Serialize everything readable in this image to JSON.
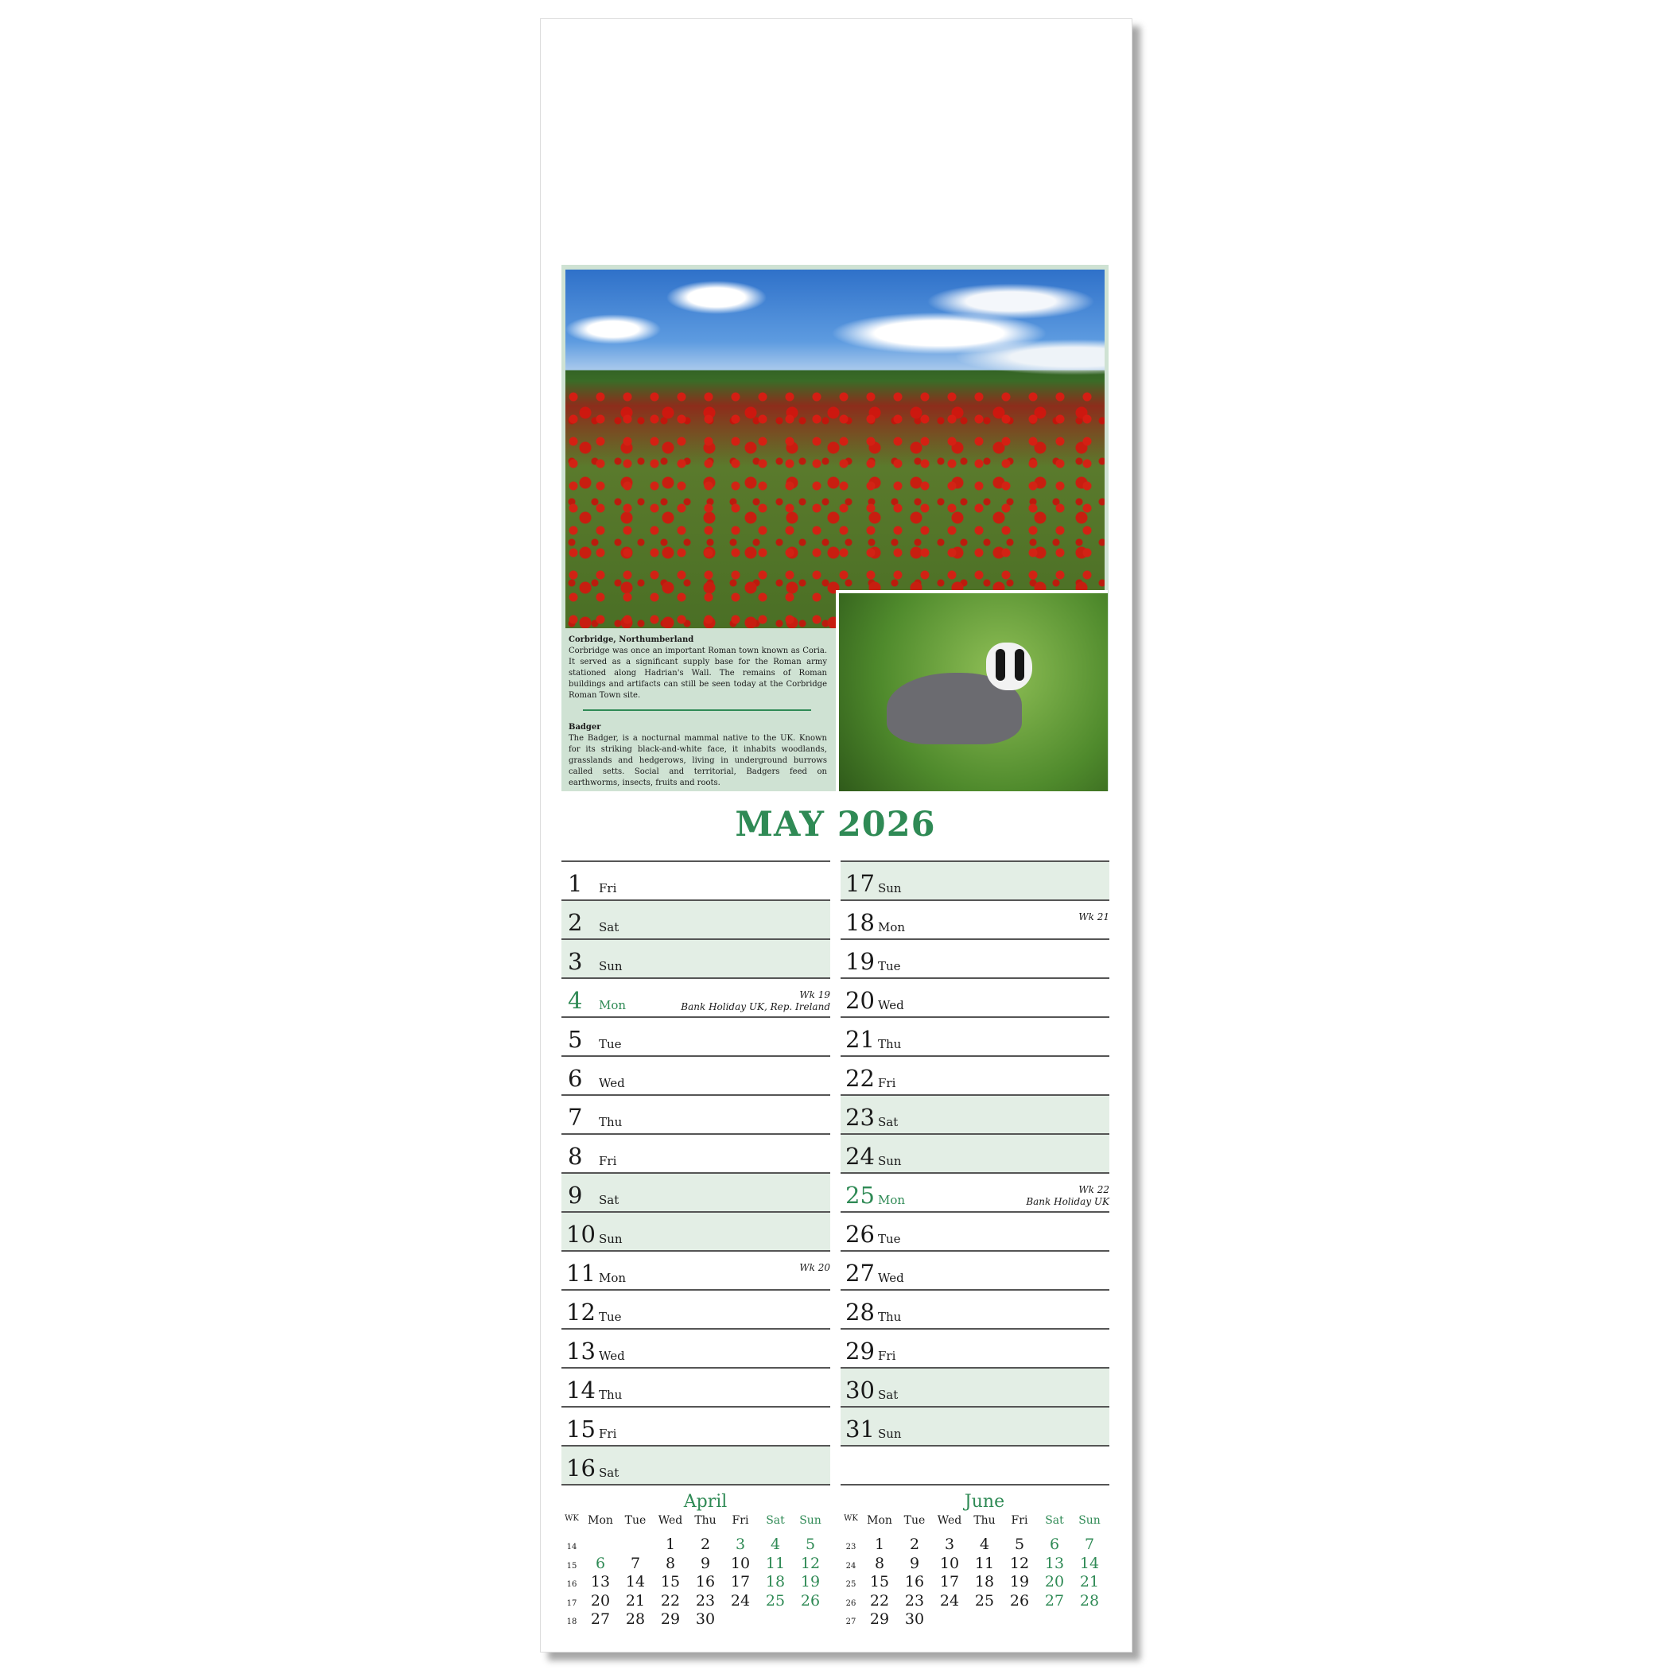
{
  "colors": {
    "accent": "#2f8a55",
    "weekend_shade": "#e3eee5",
    "caption_bg": "#cfe2d3"
  },
  "caption": {
    "title1": "Corbridge, Northumberland",
    "text1": "Corbridge was once an important Roman town known as Coria. It served as a significant supply base for the Roman army stationed along Hadrian's Wall. The remains of Roman buildings and artifacts can still be seen today at the Corbridge Roman Town site.",
    "title2": "Badger",
    "text2": "The Badger, is a nocturnal mammal native to the UK. Known for its striking black-and-white face, it inhabits woodlands, grasslands and hedgerows, living in underground burrows called setts. Social and territorial, Badgers feed on earthworms, insects, fruits and roots."
  },
  "month_title": "MAY 2026",
  "days": [
    {
      "num": "1",
      "dow": "Fri"
    },
    {
      "num": "2",
      "dow": "Sat",
      "weekend": true
    },
    {
      "num": "3",
      "dow": "Sun",
      "weekend": true
    },
    {
      "num": "4",
      "dow": "Mon",
      "holiday": true,
      "wk": "Wk 19",
      "note": "Bank Holiday UK, Rep. Ireland"
    },
    {
      "num": "5",
      "dow": "Tue"
    },
    {
      "num": "6",
      "dow": "Wed"
    },
    {
      "num": "7",
      "dow": "Thu"
    },
    {
      "num": "8",
      "dow": "Fri"
    },
    {
      "num": "9",
      "dow": "Sat",
      "weekend": true
    },
    {
      "num": "10",
      "dow": "Sun",
      "weekend": true
    },
    {
      "num": "11",
      "dow": "Mon",
      "wk": "Wk 20"
    },
    {
      "num": "12",
      "dow": "Tue"
    },
    {
      "num": "13",
      "dow": "Wed"
    },
    {
      "num": "14",
      "dow": "Thu"
    },
    {
      "num": "15",
      "dow": "Fri"
    },
    {
      "num": "16",
      "dow": "Sat",
      "weekend": true
    },
    {
      "num": "17",
      "dow": "Sun",
      "weekend": true
    },
    {
      "num": "18",
      "dow": "Mon",
      "wk": "Wk 21"
    },
    {
      "num": "19",
      "dow": "Tue"
    },
    {
      "num": "20",
      "dow": "Wed"
    },
    {
      "num": "21",
      "dow": "Thu"
    },
    {
      "num": "22",
      "dow": "Fri"
    },
    {
      "num": "23",
      "dow": "Sat",
      "weekend": true
    },
    {
      "num": "24",
      "dow": "Sun",
      "weekend": true
    },
    {
      "num": "25",
      "dow": "Mon",
      "holiday": true,
      "wk": "Wk 22",
      "note": "Bank Holiday UK"
    },
    {
      "num": "26",
      "dow": "Tue"
    },
    {
      "num": "27",
      "dow": "Wed"
    },
    {
      "num": "28",
      "dow": "Thu"
    },
    {
      "num": "29",
      "dow": "Fri"
    },
    {
      "num": "30",
      "dow": "Sat",
      "weekend": true
    },
    {
      "num": "31",
      "dow": "Sun",
      "weekend": true
    }
  ],
  "mini_calendars": [
    {
      "name": "April",
      "headers": [
        "WK",
        "Mon",
        "Tue",
        "Wed",
        "Thu",
        "Fri",
        "Sat",
        "Sun"
      ],
      "weeks": [
        {
          "wk": "14",
          "days": [
            "",
            "",
            "1",
            "2",
            "3",
            "4",
            "5"
          ]
        },
        {
          "wk": "15",
          "days": [
            "6",
            "7",
            "8",
            "9",
            "10",
            "11",
            "12"
          ]
        },
        {
          "wk": "16",
          "days": [
            "13",
            "14",
            "15",
            "16",
            "17",
            "18",
            "19"
          ]
        },
        {
          "wk": "17",
          "days": [
            "20",
            "21",
            "22",
            "23",
            "24",
            "25",
            "26"
          ]
        },
        {
          "wk": "18",
          "days": [
            "27",
            "28",
            "29",
            "30",
            "",
            "",
            ""
          ]
        }
      ],
      "highlighted": [
        "3",
        "6"
      ]
    },
    {
      "name": "June",
      "headers": [
        "WK",
        "Mon",
        "Tue",
        "Wed",
        "Thu",
        "Fri",
        "Sat",
        "Sun"
      ],
      "weeks": [
        {
          "wk": "23",
          "days": [
            "1",
            "2",
            "3",
            "4",
            "5",
            "6",
            "7"
          ]
        },
        {
          "wk": "24",
          "days": [
            "8",
            "9",
            "10",
            "11",
            "12",
            "13",
            "14"
          ]
        },
        {
          "wk": "25",
          "days": [
            "15",
            "16",
            "17",
            "18",
            "19",
            "20",
            "21"
          ]
        },
        {
          "wk": "26",
          "days": [
            "22",
            "23",
            "24",
            "25",
            "26",
            "27",
            "28"
          ]
        },
        {
          "wk": "27",
          "days": [
            "29",
            "30",
            "",
            "",
            "",
            "",
            ""
          ]
        }
      ],
      "highlighted": []
    }
  ]
}
